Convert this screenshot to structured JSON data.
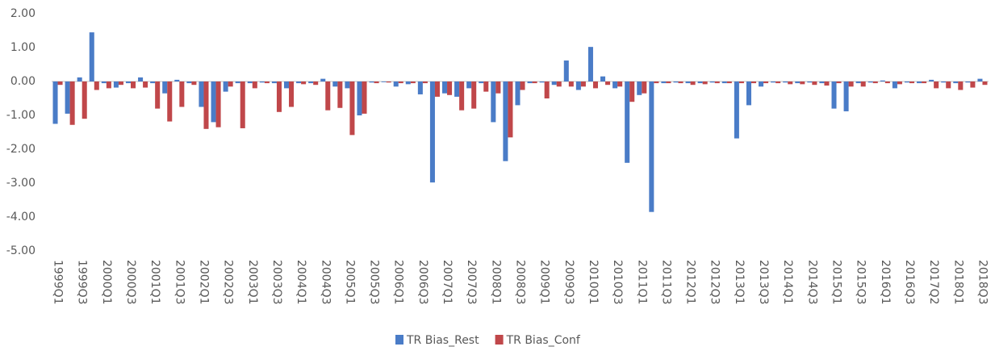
{
  "chart_data": {
    "type": "bar",
    "categories": [
      "1999Q1",
      null,
      "1999Q3",
      null,
      "2000Q1",
      null,
      "2000Q3",
      null,
      "2001Q1",
      null,
      "2001Q3",
      null,
      "2002Q1",
      null,
      "2002Q3",
      null,
      "2003Q1",
      null,
      "2003Q3",
      null,
      "2004Q1",
      null,
      "2004Q3",
      null,
      "2005Q1",
      null,
      "2005Q3",
      null,
      "2006Q1",
      null,
      "2006Q3",
      null,
      "2007Q1",
      null,
      "2007Q3",
      null,
      "2008Q1",
      null,
      "2008Q3",
      null,
      "2009Q1",
      null,
      "2009Q3",
      null,
      "2010Q1",
      null,
      "2010Q3",
      null,
      "2011Q1",
      null,
      "2011Q3",
      null,
      "2012Q1",
      null,
      "2012Q3",
      null,
      "2013Q1",
      null,
      "2013Q3",
      null,
      "2014Q1",
      null,
      "2014Q3",
      null,
      "2015Q1",
      null,
      "2015Q3",
      null,
      "2016Q1",
      null,
      "2016Q3",
      null,
      "2017Q2",
      null,
      "2018Q1",
      null,
      "2018Q3"
    ],
    "series": [
      {
        "name": "TR Bias_Rest",
        "color": "#4a7cc7",
        "values": [
          -1.25,
          -0.95,
          0.12,
          1.45,
          -0.05,
          -0.18,
          -0.05,
          0.12,
          -0.05,
          -0.35,
          0.05,
          -0.05,
          -0.75,
          -1.2,
          -0.3,
          -0.05,
          -0.05,
          -0.03,
          -0.05,
          -0.2,
          -0.05,
          -0.05,
          0.08,
          -0.15,
          -0.2,
          -1.0,
          -0.03,
          -0.02,
          -0.15,
          -0.08,
          -0.38,
          -2.98,
          -0.35,
          -0.45,
          -0.2,
          -0.05,
          -1.2,
          -2.35,
          -0.7,
          -0.05,
          -0.03,
          -0.1,
          0.62,
          -0.25,
          1.02,
          0.15,
          -0.2,
          -2.4,
          -0.4,
          -3.85,
          -0.05,
          -0.03,
          -0.05,
          -0.05,
          -0.03,
          -0.05,
          -1.68,
          -0.7,
          -0.15,
          -0.03,
          -0.03,
          -0.05,
          -0.03,
          -0.05,
          -0.8,
          -0.88,
          -0.05,
          -0.03,
          0.03,
          -0.2,
          -0.03,
          -0.05,
          0.05,
          -0.03,
          -0.05,
          -0.03,
          0.08
        ]
      },
      {
        "name": "TR Bias_Conf",
        "color": "#c0474a",
        "values": [
          -0.1,
          -1.28,
          -1.1,
          -0.25,
          -0.2,
          -0.1,
          -0.2,
          -0.18,
          -0.8,
          -1.18,
          -0.75,
          -0.1,
          -1.4,
          -1.35,
          -0.15,
          -1.38,
          -0.2,
          -0.05,
          -0.9,
          -0.75,
          -0.08,
          -0.1,
          -0.85,
          -0.78,
          -1.58,
          -0.95,
          -0.05,
          -0.03,
          -0.05,
          -0.05,
          -0.05,
          -0.45,
          -0.4,
          -0.85,
          -0.8,
          -0.3,
          -0.35,
          -1.65,
          -0.25,
          -0.05,
          -0.5,
          -0.15,
          -0.15,
          -0.15,
          -0.2,
          -0.1,
          -0.15,
          -0.6,
          -0.35,
          -0.05,
          -0.05,
          -0.05,
          -0.1,
          -0.08,
          -0.05,
          -0.05,
          -0.05,
          -0.05,
          -0.05,
          -0.05,
          -0.08,
          -0.08,
          -0.1,
          -0.12,
          -0.05,
          -0.15,
          -0.15,
          -0.05,
          -0.05,
          -0.08,
          -0.05,
          -0.05,
          -0.2,
          -0.2,
          -0.25,
          -0.18,
          -0.1
        ]
      }
    ],
    "ylim": [
      -5,
      2
    ],
    "yticks": [
      {
        "value": 2,
        "label": "2.00"
      },
      {
        "value": 1,
        "label": "1.00"
      },
      {
        "value": 0,
        "label": "0.00"
      },
      {
        "value": -1,
        "label": "-1.00"
      },
      {
        "value": -2,
        "label": "-2.00"
      },
      {
        "value": -3,
        "label": "-3.00"
      },
      {
        "value": -4,
        "label": "-4.00"
      },
      {
        "value": -5,
        "label": "-5.00"
      }
    ],
    "legend": "bottom"
  }
}
